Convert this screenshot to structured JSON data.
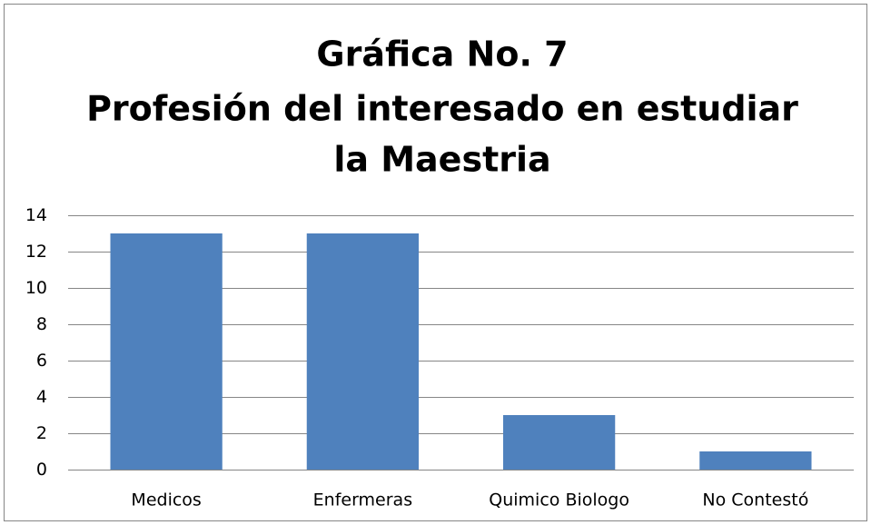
{
  "chart_data": {
    "type": "bar",
    "title": [
      "Gráfica No. 7",
      "Profesión del interesado en estudiar",
      "la Maestria"
    ],
    "categories": [
      "Medicos",
      "Enfermeras",
      "Quimico Biologo",
      "No Contestó"
    ],
    "values": [
      13,
      13,
      3,
      1
    ],
    "color": "#4f81bd",
    "ylim": [
      0,
      14
    ],
    "yticks": [
      0,
      2,
      4,
      6,
      8,
      10,
      12,
      14
    ],
    "grid": true
  }
}
